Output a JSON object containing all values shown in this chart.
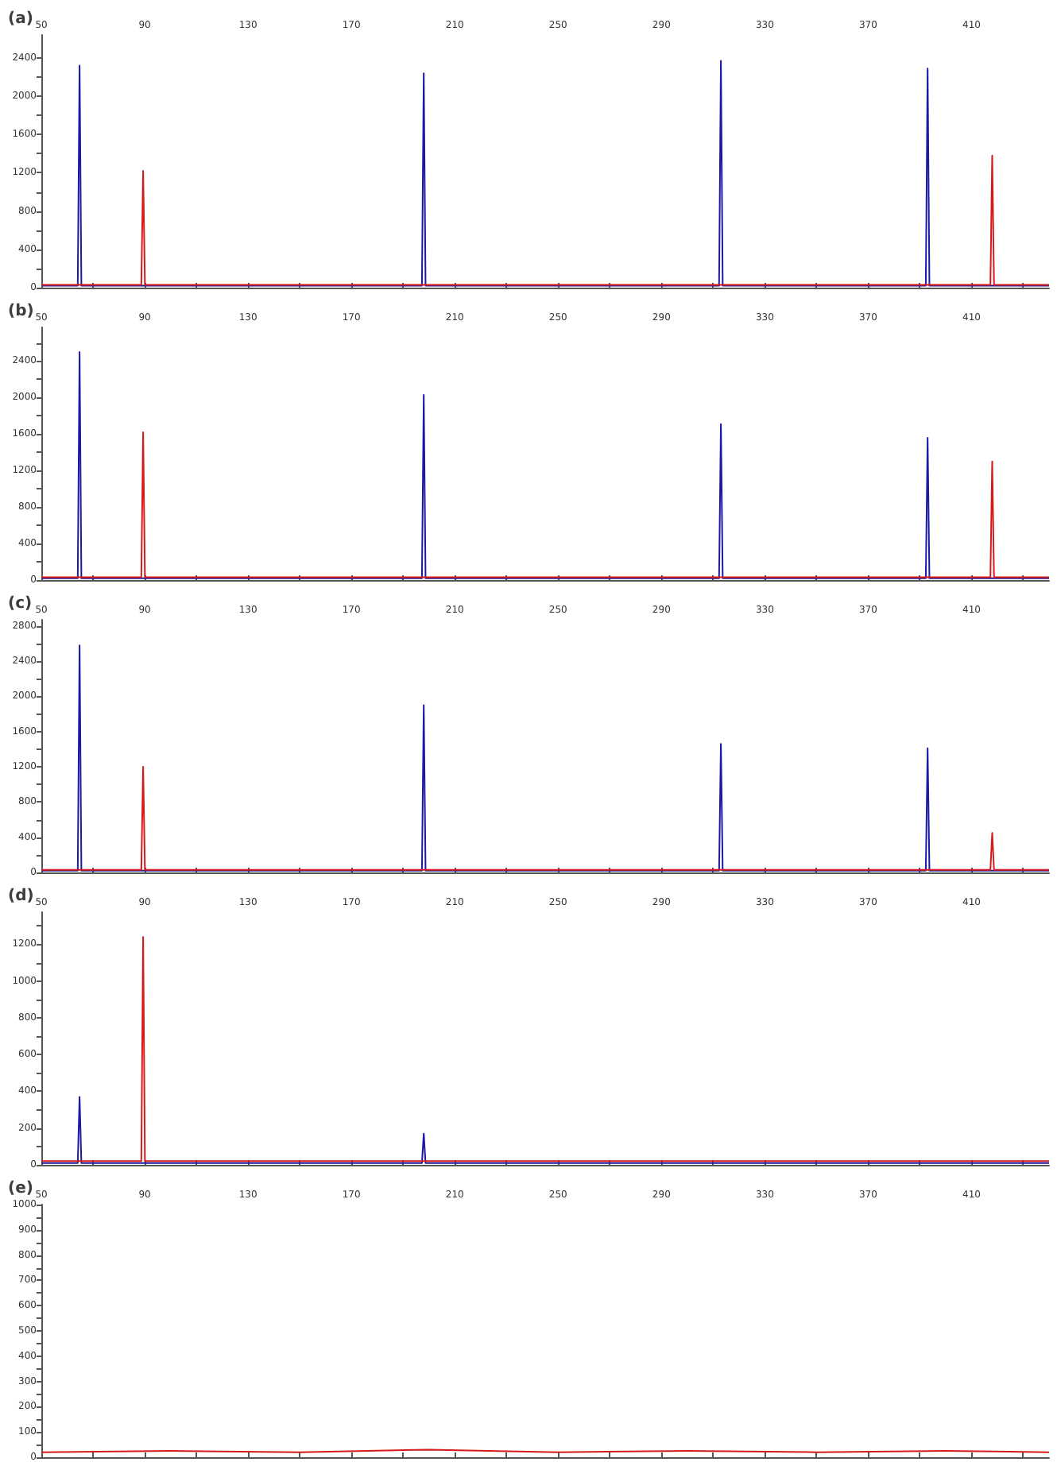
{
  "chart_data": [
    {
      "type": "line",
      "title": "(a)",
      "xlim": [
        50,
        440
      ],
      "xticks": [
        50,
        {
          "value": 70,
          "label": null
        },
        90,
        {
          "value": 110,
          "label": null
        },
        130,
        {
          "value": 150,
          "label": null
        },
        170,
        {
          "value": 190,
          "label": null
        },
        210,
        {
          "value": 230,
          "label": null
        },
        250,
        {
          "value": 270,
          "label": null
        },
        290,
        {
          "value": 310,
          "label": null
        },
        330,
        {
          "value": 350,
          "label": null
        },
        370,
        {
          "value": 390,
          "label": null
        },
        410,
        {
          "value": 430,
          "label": null
        }
      ],
      "ylim": [
        0,
        2640
      ],
      "yticks": [
        0,
        {
          "value": 200,
          "label": null
        },
        400,
        {
          "value": 600,
          "label": null
        },
        800,
        {
          "value": 1000,
          "label": null
        },
        1200,
        {
          "value": 1400,
          "label": null
        },
        1600,
        {
          "value": 1800,
          "label": null
        },
        2000,
        {
          "value": 2200,
          "label": null
        },
        2400
      ],
      "grid": false,
      "series": [
        {
          "color": "#1a1aa6",
          "x": [
            50,
            64.1,
            64.8,
            65.5,
            197.3,
            198,
            198.7,
            312.3,
            313,
            313.7,
            392.3,
            393,
            393.7,
            440
          ],
          "values": [
            20,
            20,
            2320,
            20,
            20,
            2240,
            20,
            20,
            2370,
            20,
            20,
            2290,
            20,
            20
          ]
        },
        {
          "color": "#d41a1a",
          "x": [
            50,
            88.7,
            89.4,
            90.1,
            417.3,
            418,
            418.7,
            440
          ],
          "values": [
            30,
            30,
            1220,
            30,
            30,
            1380,
            30,
            30
          ]
        }
      ]
    },
    {
      "type": "line",
      "title": "(b)",
      "xlim": [
        50,
        440
      ],
      "xticks": [
        50,
        {
          "value": 70,
          "label": null
        },
        90,
        {
          "value": 110,
          "label": null
        },
        130,
        {
          "value": 150,
          "label": null
        },
        170,
        {
          "value": 190,
          "label": null
        },
        210,
        {
          "value": 230,
          "label": null
        },
        250,
        {
          "value": 270,
          "label": null
        },
        290,
        {
          "value": 310,
          "label": null
        },
        330,
        {
          "value": 350,
          "label": null
        },
        370,
        {
          "value": 390,
          "label": null
        },
        410,
        {
          "value": 430,
          "label": null
        }
      ],
      "ylim": [
        0,
        2770
      ],
      "yticks": [
        0,
        {
          "value": 200,
          "label": null
        },
        400,
        {
          "value": 600,
          "label": null
        },
        800,
        {
          "value": 1000,
          "label": null
        },
        1200,
        {
          "value": 1400,
          "label": null
        },
        1600,
        {
          "value": 1800,
          "label": null
        },
        2000,
        {
          "value": 2200,
          "label": null
        },
        2400,
        {
          "value": 2600,
          "label": null
        }
      ],
      "grid": false,
      "series": [
        {
          "color": "#1a1aa6",
          "x": [
            50,
            64.1,
            64.8,
            65.5,
            197.3,
            198,
            198.7,
            312.3,
            313,
            313.7,
            392.3,
            393,
            393.7,
            440
          ],
          "values": [
            20,
            20,
            2500,
            20,
            20,
            2030,
            20,
            20,
            1710,
            20,
            20,
            1560,
            20,
            20
          ]
        },
        {
          "color": "#d41a1a",
          "x": [
            50,
            88.7,
            89.4,
            90.1,
            417.3,
            418,
            418.7,
            440
          ],
          "values": [
            30,
            30,
            1620,
            30,
            30,
            1300,
            30,
            30
          ]
        }
      ]
    },
    {
      "type": "line",
      "title": "(c)",
      "xlim": [
        50,
        440
      ],
      "xticks": [
        50,
        {
          "value": 70,
          "label": null
        },
        90,
        {
          "value": 110,
          "label": null
        },
        130,
        {
          "value": 150,
          "label": null
        },
        170,
        {
          "value": 190,
          "label": null
        },
        210,
        {
          "value": 230,
          "label": null
        },
        250,
        {
          "value": 270,
          "label": null
        },
        290,
        {
          "value": 310,
          "label": null
        },
        330,
        {
          "value": 350,
          "label": null
        },
        370,
        {
          "value": 390,
          "label": null
        },
        410,
        {
          "value": 430,
          "label": null
        }
      ],
      "ylim": [
        0,
        2870
      ],
      "yticks": [
        0,
        {
          "value": 200,
          "label": null
        },
        400,
        {
          "value": 600,
          "label": null
        },
        800,
        {
          "value": 1000,
          "label": null
        },
        1200,
        {
          "value": 1400,
          "label": null
        },
        1600,
        {
          "value": 1800,
          "label": null
        },
        2000,
        {
          "value": 2200,
          "label": null
        },
        2400,
        {
          "value": 2600,
          "label": null
        },
        2800
      ],
      "grid": false,
      "series": [
        {
          "color": "#1a1aa6",
          "x": [
            50,
            64.1,
            64.8,
            65.5,
            197.3,
            198,
            198.7,
            312.3,
            313,
            313.7,
            392.3,
            393,
            393.7,
            440
          ],
          "values": [
            20,
            20,
            2580,
            20,
            20,
            1900,
            20,
            20,
            1460,
            20,
            20,
            1410,
            20,
            20
          ]
        },
        {
          "color": "#d41a1a",
          "x": [
            50,
            88.7,
            89.4,
            90.1,
            417.3,
            418,
            418.7,
            440
          ],
          "values": [
            30,
            30,
            1200,
            30,
            30,
            450,
            30,
            30
          ]
        }
      ]
    },
    {
      "type": "line",
      "title": "(d)",
      "xlim": [
        50,
        440
      ],
      "xticks": [
        50,
        {
          "value": 70,
          "label": null
        },
        90,
        {
          "value": 110,
          "label": null
        },
        130,
        {
          "value": 150,
          "label": null
        },
        170,
        {
          "value": 190,
          "label": null
        },
        210,
        {
          "value": 230,
          "label": null
        },
        250,
        {
          "value": 270,
          "label": null
        },
        290,
        {
          "value": 310,
          "label": null
        },
        330,
        {
          "value": 350,
          "label": null
        },
        370,
        {
          "value": 390,
          "label": null
        },
        410,
        {
          "value": 430,
          "label": null
        }
      ],
      "ylim": [
        0,
        1375
      ],
      "yticks": [
        0,
        {
          "value": 100,
          "label": null
        },
        200,
        {
          "value": 300,
          "label": null
        },
        400,
        {
          "value": 500,
          "label": null
        },
        600,
        {
          "value": 700,
          "label": null
        },
        800,
        {
          "value": 900,
          "label": null
        },
        1000,
        {
          "value": 1100,
          "label": null
        },
        1200,
        {
          "value": 1300,
          "label": null
        }
      ],
      "grid": false,
      "series": [
        {
          "color": "#1a1aa6",
          "x": [
            50,
            64.1,
            64.8,
            65.5,
            197.3,
            198,
            198.7,
            440
          ],
          "values": [
            10,
            10,
            370,
            10,
            10,
            170,
            10,
            10
          ]
        },
        {
          "color": "#d41a1a",
          "x": [
            50,
            88.7,
            89.4,
            90.1,
            440
          ],
          "values": [
            20,
            20,
            1240,
            20,
            20
          ]
        }
      ]
    },
    {
      "type": "line",
      "title": "(e)",
      "xlim": [
        50,
        440
      ],
      "xticks": [
        50,
        {
          "value": 70,
          "label": null
        },
        90,
        {
          "value": 110,
          "label": null
        },
        130,
        {
          "value": 150,
          "label": null
        },
        170,
        {
          "value": 190,
          "label": null
        },
        210,
        {
          "value": 230,
          "label": null
        },
        250,
        {
          "value": 270,
          "label": null
        },
        290,
        {
          "value": 310,
          "label": null
        },
        330,
        {
          "value": 350,
          "label": null
        },
        370,
        {
          "value": 390,
          "label": null
        },
        410,
        {
          "value": 430,
          "label": null
        }
      ],
      "ylim": [
        0,
        1000
      ],
      "yticks": [
        0,
        {
          "value": 50,
          "label": null
        },
        100,
        {
          "value": 150,
          "label": null
        },
        200,
        {
          "value": 250,
          "label": null
        },
        300,
        {
          "value": 350,
          "label": null
        },
        400,
        {
          "value": 450,
          "label": null
        },
        500,
        {
          "value": 550,
          "label": null
        },
        600,
        {
          "value": 650,
          "label": null
        },
        700,
        {
          "value": 750,
          "label": null
        },
        800,
        {
          "value": 850,
          "label": null
        },
        900,
        {
          "value": 950,
          "label": null
        },
        1000
      ],
      "grid": false,
      "series": [
        {
          "color": "#d41a1a",
          "x": [
            50,
            100,
            150,
            200,
            250,
            300,
            350,
            400,
            440
          ],
          "values": [
            20,
            25,
            20,
            30,
            20,
            25,
            20,
            25,
            20
          ]
        }
      ]
    }
  ]
}
